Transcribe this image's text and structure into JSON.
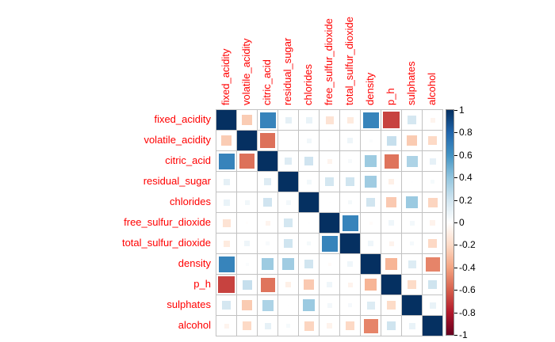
{
  "chart_data": {
    "type": "heatmap",
    "subtype": "correlation-matrix-squares",
    "title": "",
    "variables": [
      "fixed_acidity",
      "volatile_acidity",
      "citric_acid",
      "residual_sugar",
      "chlorides",
      "free_sulfur_dioxide",
      "total_sulfur_dioxide",
      "density",
      "p_h",
      "sulphates",
      "alcohol"
    ],
    "matrix": [
      [
        1.0,
        -0.256,
        0.672,
        0.115,
        0.094,
        -0.154,
        -0.113,
        0.668,
        -0.683,
        0.183,
        -0.062
      ],
      [
        -0.256,
        1.0,
        -0.552,
        0.002,
        0.061,
        -0.011,
        0.076,
        0.022,
        0.235,
        -0.261,
        -0.202
      ],
      [
        0.672,
        -0.552,
        1.0,
        0.144,
        0.204,
        -0.061,
        0.036,
        0.365,
        -0.542,
        0.313,
        0.11
      ],
      [
        0.115,
        0.002,
        0.144,
        1.0,
        0.056,
        0.187,
        0.203,
        0.355,
        -0.086,
        0.006,
        0.042
      ],
      [
        0.094,
        0.061,
        0.204,
        0.056,
        1.0,
        0.006,
        0.047,
        0.201,
        -0.265,
        0.371,
        -0.221
      ],
      [
        -0.154,
        -0.011,
        -0.061,
        0.187,
        0.006,
        1.0,
        0.668,
        -0.022,
        0.07,
        0.052,
        -0.069
      ],
      [
        -0.113,
        0.076,
        0.036,
        0.203,
        0.047,
        0.668,
        1.0,
        0.071,
        -0.066,
        0.043,
        -0.206
      ],
      [
        0.668,
        0.022,
        0.365,
        0.355,
        0.201,
        -0.022,
        0.071,
        1.0,
        -0.342,
        0.149,
        -0.496
      ],
      [
        -0.683,
        0.235,
        -0.542,
        -0.086,
        -0.265,
        0.07,
        -0.066,
        -0.342,
        1.0,
        -0.197,
        0.206
      ],
      [
        0.183,
        -0.261,
        0.313,
        0.006,
        0.371,
        0.052,
        0.043,
        0.149,
        -0.197,
        1.0,
        0.094
      ],
      [
        -0.062,
        -0.202,
        0.11,
        0.042,
        -0.221,
        -0.069,
        -0.206,
        -0.496,
        0.206,
        0.094,
        1.0
      ]
    ],
    "legend": {
      "tick_labels": [
        "1",
        "0.8",
        "0.6",
        "0.4",
        "0.2",
        "0",
        "-0.2",
        "-0.4",
        "-0.6",
        "-0.8",
        "-1"
      ],
      "range": [
        -1,
        1
      ],
      "position": "right"
    },
    "palette_rdbu": [
      {
        "v": 1.0,
        "c": "#053061"
      },
      {
        "v": 0.8,
        "c": "#2166AC"
      },
      {
        "v": 0.6,
        "c": "#4393C3"
      },
      {
        "v": 0.4,
        "c": "#92C5DE"
      },
      {
        "v": 0.2,
        "c": "#D1E5F0"
      },
      {
        "v": 0.0,
        "c": "#FFFFFF"
      },
      {
        "v": -0.2,
        "c": "#FDDBC7"
      },
      {
        "v": -0.4,
        "c": "#F4A582"
      },
      {
        "v": -0.6,
        "c": "#D6604D"
      },
      {
        "v": -0.8,
        "c": "#B2182B"
      },
      {
        "v": -1.0,
        "c": "#67001F"
      }
    ],
    "colors": {
      "label_text": "#ff0000",
      "legend_text": "#000000",
      "grid": "#c2c2c2",
      "background": "#ffffff"
    },
    "layout_hints": {
      "grid": true,
      "square_size_rule": "side proportional to sqrt(|r|)",
      "diagonal": "full dark-blue squares (r = 1)",
      "legend_position": "right"
    }
  }
}
